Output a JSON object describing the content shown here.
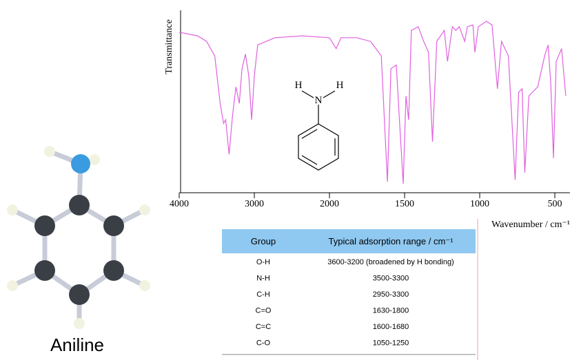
{
  "chart_data": {
    "type": "line",
    "y_label": "Transmittance",
    "x_label": "Wavenumber / cm⁻¹",
    "xlim": [
      4000,
      400
    ],
    "xticks": [
      4000,
      3000,
      2000,
      1500,
      1000,
      500
    ],
    "ylim": [
      0,
      100
    ],
    "series": [
      {
        "color": "#e060e0",
        "x": [
          4000,
          3755,
          3636,
          3527,
          3455,
          3409,
          3382,
          3336,
          3291,
          3245,
          3200,
          3164,
          3118,
          3073,
          3036,
          3000,
          2955,
          2727,
          2364,
          2000,
          1955,
          1923,
          1818,
          1727,
          1691,
          1655,
          1614,
          1591,
          1555,
          1536,
          1509,
          1491,
          1473,
          1455,
          1409,
          1373,
          1341,
          1314,
          1286,
          1236,
          1214,
          1182,
          1159,
          1136,
          1100,
          1082,
          1045,
          1032,
          1009,
          955,
          918,
          882,
          855,
          809,
          764,
          741,
          718,
          700,
          673,
          614,
          568,
          545,
          527,
          509,
          491,
          455,
          427
        ],
        "values": [
          88,
          86,
          83,
          75,
          49,
          38,
          40,
          21,
          42,
          58,
          49,
          68,
          76,
          64,
          40,
          64,
          81,
          85,
          86,
          85,
          79,
          85,
          85,
          83,
          79,
          75,
          6,
          68,
          70,
          42,
          5,
          53,
          40,
          89,
          91,
          83,
          77,
          28,
          83,
          89,
          72,
          91,
          89,
          91,
          83,
          91,
          92,
          77,
          91,
          94,
          92,
          57,
          83,
          75,
          7,
          55,
          57,
          11,
          53,
          58,
          75,
          81,
          60,
          19,
          72,
          79,
          53
        ]
      }
    ]
  },
  "structure": {
    "atoms": [
      "H",
      "N",
      "H"
    ]
  },
  "model_caption": "Aniline",
  "table": {
    "header": [
      "Group",
      "Typical adsorption range / cm⁻¹"
    ],
    "rows": [
      [
        "O-H",
        "3600-3200 (broadened by H bonding)"
      ],
      [
        "N-H",
        "3500-3300"
      ],
      [
        "C-H",
        "2950-3300"
      ],
      [
        "C=O",
        "1630-1800"
      ],
      [
        "C=C",
        "1600-1680"
      ],
      [
        "C-O",
        "1050-1250"
      ]
    ]
  }
}
